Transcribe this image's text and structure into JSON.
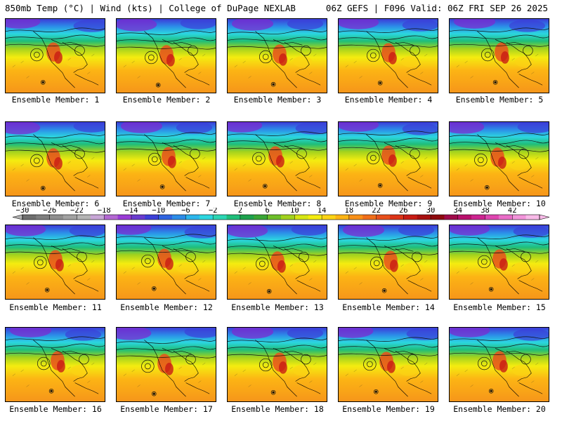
{
  "header": {
    "left": "850mb Temp (°C) | Wind (kts) | College of DuPage NEXLAB",
    "right": "06Z GEFS | F096 Valid: 06Z FRI SEP 26 2025"
  },
  "caption_prefix": "Ensemble Member: ",
  "members": [
    1,
    2,
    3,
    4,
    5,
    6,
    7,
    8,
    9,
    10,
    11,
    12,
    13,
    14,
    15,
    16,
    17,
    18,
    19,
    20
  ],
  "colorbar": {
    "labels": [
      "-30",
      "-26",
      "-22",
      "-18",
      "-14",
      "-10",
      "-6",
      "-2",
      "2",
      "6",
      "10",
      "14",
      "18",
      "22",
      "26",
      "30",
      "34",
      "38",
      "42"
    ],
    "colors": [
      "#6e6e6e",
      "#7e7e7e",
      "#8e8e8e",
      "#a2a2a2",
      "#b4b4b4",
      "#c7a6d6",
      "#b368d2",
      "#9a3cd6",
      "#6a3ccf",
      "#3c40d8",
      "#2f64e0",
      "#2c8ce8",
      "#2cb6ec",
      "#2cd6e0",
      "#2cd6b4",
      "#1fbe7a",
      "#1da24e",
      "#3aa636",
      "#6dbe2a",
      "#a2d21e",
      "#d6e614",
      "#f4ec10",
      "#fcd414",
      "#fcb414",
      "#f89018",
      "#f06e1a",
      "#e8501c",
      "#dc3418",
      "#c81c14",
      "#a81010",
      "#8e0a0e",
      "#a00a4a",
      "#b8106c",
      "#cc2490",
      "#de46b0",
      "#ea6ec8",
      "#f294da",
      "#f8bae8"
    ]
  }
}
